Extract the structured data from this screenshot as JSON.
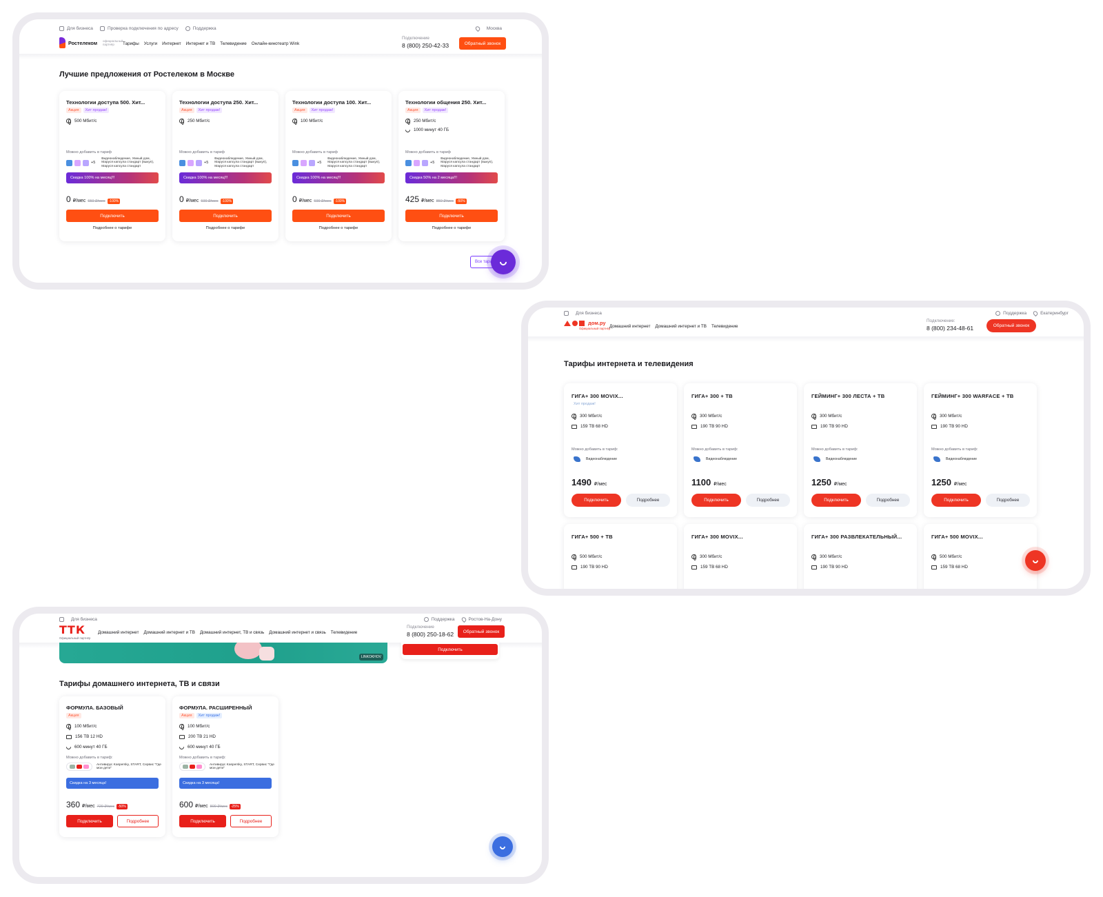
{
  "rostelecom": {
    "topbar": [
      "Для бизнеса",
      "Проверка подключения по адресу",
      "Поддержка"
    ],
    "city": "Москва",
    "logo": "Ростелеком",
    "logo_sub": "официальный партнёр",
    "nav": [
      "Тарифы",
      "Услуги",
      "Интернет",
      "Интернет и ТВ",
      "Телевидение",
      "Онлайн-кинотеатр Wink"
    ],
    "phone_caption": "Подключение",
    "phone": "8 (800) 250-42-33",
    "callback": "Обратный звонок",
    "heading": "Лучшие предложения от Ростелеком в Москве",
    "add_label": "Можно добавить в тариф",
    "add_text": "Видеонаблюдение, Умный дом, Маруся капсула стандарт (выкуп), Маруся капсула стандарт",
    "add_more": "+5",
    "connect": "Подключить",
    "details": "Подробнее о тарифе",
    "all_tariffs": "Все тарифы",
    "cards": [
      {
        "title": "Технологии доступа 500. Хит...",
        "tag1": "Акция",
        "tag2": "Хит продаж!",
        "speed": "500 Мбит/с",
        "minutes": "",
        "promo": "Скидка 100% на месяц!!!",
        "price": "0",
        "unit": "₽/мес",
        "old": "650 ₽/мес",
        "disc": "-100%"
      },
      {
        "title": "Технологии доступа 250. Хит...",
        "tag1": "Акция",
        "tag2": "Хит продаж!",
        "speed": "250 Мбит/с",
        "minutes": "",
        "promo": "Скидка 100% на месяц!!!",
        "price": "0",
        "unit": "₽/мес",
        "old": "600 ₽/мес",
        "disc": "-100%"
      },
      {
        "title": "Технологии доступа 100. Хит...",
        "tag1": "Акция",
        "tag2": "Хит продаж!",
        "speed": "100 Мбит/с",
        "minutes": "",
        "promo": "Скидка 100% на месяц!!!",
        "price": "0",
        "unit": "₽/мес",
        "old": "600 ₽/мес",
        "disc": "-100%"
      },
      {
        "title": "Технологии общения 250. Хит...",
        "tag1": "Акция",
        "tag2": "Хит продаж!",
        "speed": "250 Мбит/с",
        "minutes": "1000 минут  40 ГБ",
        "promo": "Скидка 50% на 2 месяца!!!",
        "price": "425",
        "unit": "₽/мес",
        "old": "850 ₽/мес",
        "disc": "-50%"
      }
    ]
  },
  "domru": {
    "topbar_left": "Для бизнеса",
    "support": "Поддержка",
    "city": "Екатеринбург",
    "logo": "дом.ру",
    "logo_sub": "Официальный партнёр",
    "nav": [
      "Домашний интернет",
      "Домашний интернет и ТВ",
      "Телевидение"
    ],
    "phone_caption": "Подключение:",
    "phone": "8 (800) 234-48-61",
    "callback": "Обратный звонок",
    "heading": "Тарифы интернета и телевидения",
    "add_label": "Можно добавить в тариф:",
    "add_item": "Видеонаблюдение",
    "connect": "Подключить",
    "details": "Подробнее",
    "cards": [
      {
        "title": "ГИГА+ 300 MOVIX...",
        "tag": "Хит продаж!",
        "speed": "300 Мбит/с",
        "tv": "159 ТВ  68 HD",
        "price": "1490",
        "unit": "₽/мес"
      },
      {
        "title": "ГИГА+ 300 + ТВ",
        "tag": "",
        "speed": "300 Мбит/с",
        "tv": "190 ТВ  90 HD",
        "price": "1100",
        "unit": "₽/мес"
      },
      {
        "title": "ГЕЙМИНГ+ 300 ЛЕСТА + ТВ",
        "tag": "",
        "speed": "300 Мбит/с",
        "tv": "190 ТВ  90 HD",
        "price": "1250",
        "unit": "₽/мес"
      },
      {
        "title": "ГЕЙМИНГ+ 300 WARFACE + ТВ",
        "tag": "",
        "speed": "300 Мбит/с",
        "tv": "190 ТВ  90 HD",
        "price": "1250",
        "unit": "₽/мес"
      }
    ],
    "cards2": [
      {
        "title": "ГИГА+ 500 + ТВ",
        "speed": "500 Мбит/с",
        "tv": "190 ТВ  90 HD"
      },
      {
        "title": "ГИГА+ 300 MOVIX...",
        "speed": "300 Мбит/с",
        "tv": "159 ТВ  68 HD"
      },
      {
        "title": "ГИГА+ 300 РАЗВЛЕКАТЕЛЬНЫЙ...",
        "speed": "300 Мбит/с",
        "tv": "190 ТВ  90 HD"
      },
      {
        "title": "ГИГА+ 500 MOVIX...",
        "speed": "500 Мбит/с",
        "tv": "159 ТВ  68 HD"
      }
    ]
  },
  "ttk": {
    "topbar_left": "Для бизнеса",
    "support": "Поддержка",
    "city": "Ростов-На-Дону",
    "logo": "ТТК",
    "logo_sub": "Официальный партнёр",
    "nav": [
      "Домашний интернет",
      "Домашний интернет и ТВ",
      "Домашний интернет, ТВ и связь",
      "Домашний интернет и связь",
      "Телевидение"
    ],
    "phone_caption": "Подключение",
    "phone": "8 (800) 250-18-62",
    "callback": "Обратный звонок",
    "banner_badge": "LINKOKHOV",
    "connect_top": "Подключить",
    "heading": "Тарифы домашнего интернета, ТВ и связи",
    "add_label": "Можно добавить в тариф:",
    "add_text": "Антивирус Kaspersky, START, Сервис \"Где мои дети\"",
    "connect": "Подключить",
    "details": "Подробнее",
    "cards": [
      {
        "title": "ФОРМУЛА. БАЗОВЫЙ",
        "tag1": "Акция",
        "tag2": "",
        "speed": "100 Мбит/с",
        "tv": "156 ТВ  12 HD",
        "minutes": "600 минут  40 ГБ",
        "promo": "Скидка на 3 месяца!",
        "price": "360",
        "unit": "₽/мес",
        "old": "720 ₽/мес",
        "disc": "-50%"
      },
      {
        "title": "ФОРМУЛА. РАСШИРЕННЫЙ",
        "tag1": "Акция",
        "tag2": "Хит продаж!",
        "speed": "100 Мбит/с",
        "tv": "200 ТВ  21 HD",
        "minutes": "600 минут  40 ГБ",
        "promo": "Скидка на 3 месяца!",
        "price": "600",
        "unit": "₽/мес",
        "old": "800 ₽/мес",
        "disc": "-25%"
      }
    ]
  },
  "colors": {
    "rt_orange": "#ff4f12",
    "rt_purple": "#6b2bd9",
    "domru_red": "#ee3524",
    "ttk_red": "#e8201a",
    "ttk_blue": "#3b6ee0"
  }
}
